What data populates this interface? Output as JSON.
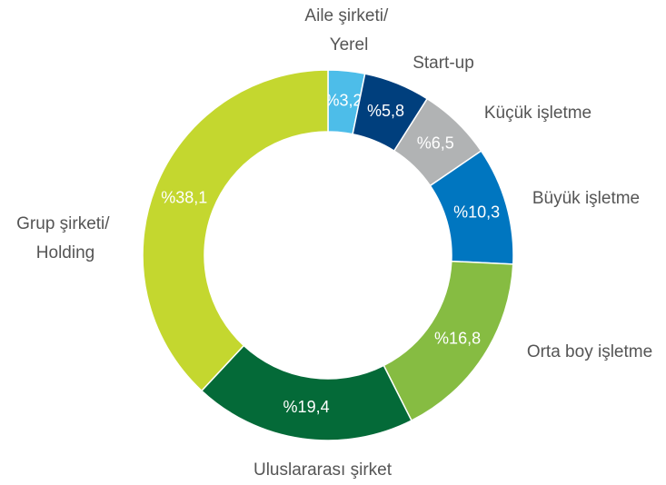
{
  "chart_data": {
    "type": "donut",
    "categories": [
      "Aile şirketi/\nYerel",
      "Start-up",
      "Küçük işletme",
      "Büyük işletme",
      "Orta boy işletme",
      "Uluslararası şirket",
      "Grup şirketi/\nHolding"
    ],
    "values": [
      3.2,
      5.8,
      6.5,
      10.3,
      16.8,
      19.4,
      38.1
    ],
    "value_labels": [
      "%3,2",
      "%5,8",
      "%6,5",
      "%10,3",
      "%16,8",
      "%19,4",
      "%38,1"
    ],
    "colors": [
      "#4dbde9",
      "#003f7d",
      "#b1b3b4",
      "#0076c0",
      "#86bc42",
      "#046a38",
      "#c4d72f"
    ]
  }
}
